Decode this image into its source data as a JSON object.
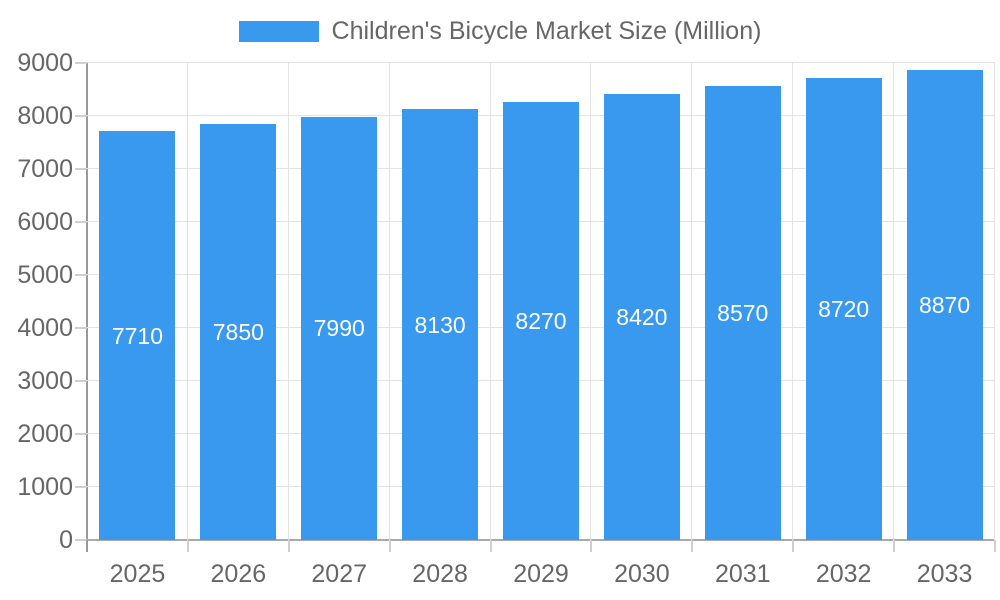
{
  "chart_data": {
    "type": "bar",
    "title": "Children's Bicycle Market Size (Million)",
    "categories": [
      "2025",
      "2026",
      "2027",
      "2028",
      "2029",
      "2030",
      "2031",
      "2032",
      "2033"
    ],
    "values": [
      7710,
      7850,
      7990,
      8130,
      8270,
      8420,
      8570,
      8720,
      8870
    ],
    "series": [
      {
        "name": "Children's Bicycle Market Size (Million)",
        "values": [
          7710,
          7850,
          7990,
          8130,
          8270,
          8420,
          8570,
          8720,
          8870
        ]
      }
    ],
    "xlabel": "",
    "ylabel": "",
    "ylim": [
      0,
      9000
    ],
    "y_ticks": [
      0,
      1000,
      2000,
      3000,
      4000,
      5000,
      6000,
      7000,
      8000,
      9000
    ],
    "grid": "horizontal and vertical light gray",
    "legend_position": "top-center",
    "value_labels": "white, centered inside bars"
  },
  "legend": {
    "label": "Children's Bicycle Market Size (Million)",
    "swatch_color": "#3999EE"
  },
  "colors": {
    "bar": "#3999EE",
    "grid": "#E3E3E3",
    "axis_line": "#999999",
    "tick": "#CFCFCF",
    "axis_text": "#666666",
    "value_label_text": "#FFFFFF",
    "background": "#FFFFFF"
  }
}
